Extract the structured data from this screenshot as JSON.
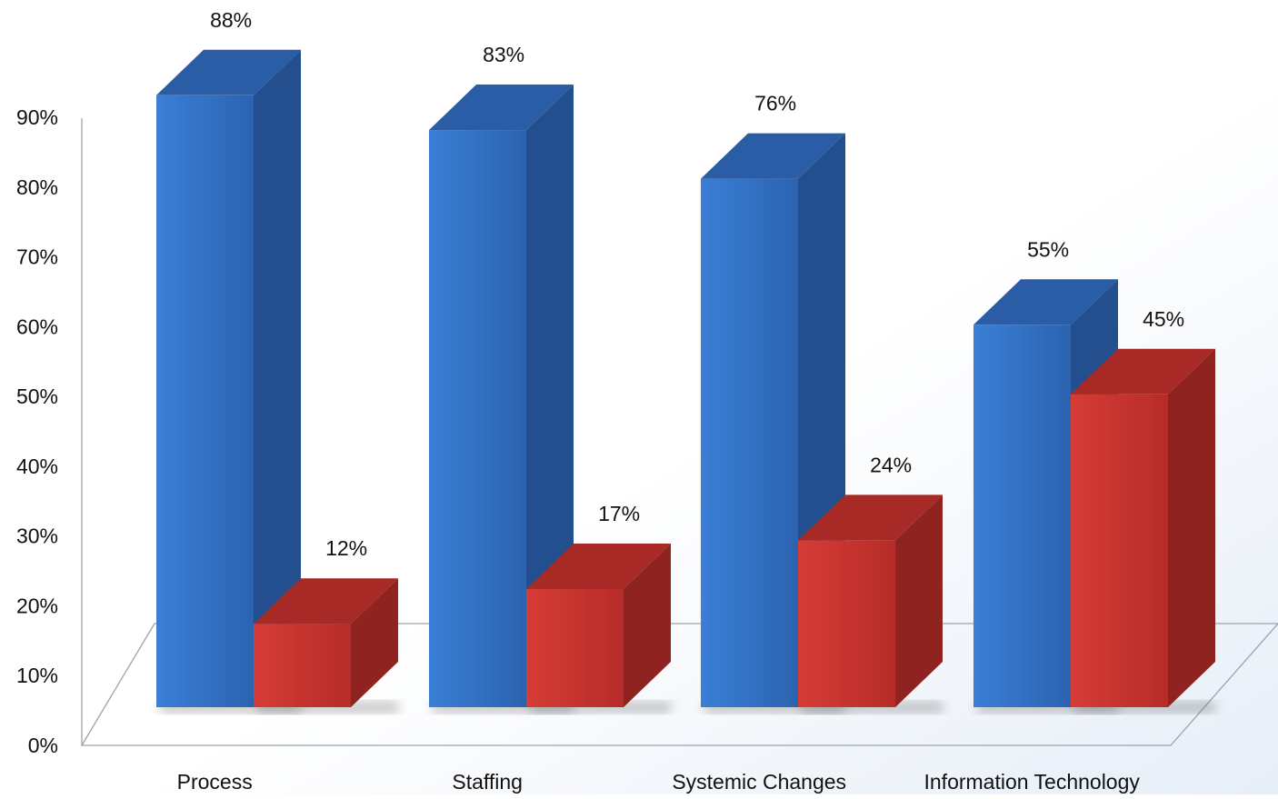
{
  "chart_data": {
    "type": "bar",
    "categories": [
      "Process",
      "Staffing",
      "Systemic Changes",
      "Information Technology"
    ],
    "series": [
      {
        "values": [
          88,
          83,
          76,
          55
        ],
        "color": "#2f6fc2",
        "side_color": "#234f8e",
        "top_color": "#2a5da6"
      },
      {
        "values": [
          12,
          17,
          24,
          45
        ],
        "color": "#c6322e",
        "side_color": "#8e2320",
        "top_color": "#a82a26"
      }
    ],
    "ylim": [
      0,
      90
    ],
    "yticks": [
      "0%",
      "10%",
      "20%",
      "30%",
      "40%",
      "50%",
      "60%",
      "70%",
      "80%",
      "90%"
    ],
    "data_labels": [
      [
        "88%",
        "83%",
        "76%",
        "55%"
      ],
      [
        "12%",
        "17%",
        "24%",
        "45%"
      ]
    ],
    "value_suffix": "%",
    "grid": false,
    "style": "3d-bars"
  }
}
